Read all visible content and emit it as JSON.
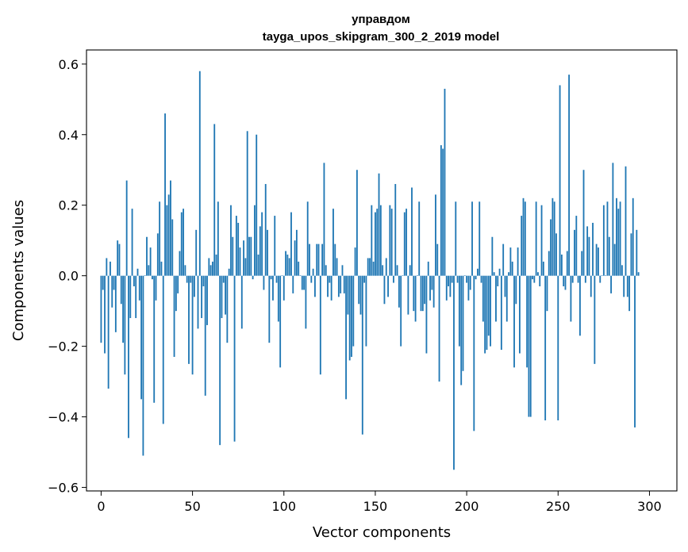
{
  "chart_data": {
    "type": "bar",
    "title": "управдом",
    "subtitle": "tayga_upos_skipgram_300_2_2019 model",
    "xlabel": "Vector components",
    "ylabel": "Components values",
    "xlim": [
      -8,
      315
    ],
    "ylim": [
      -0.61,
      0.64
    ],
    "xticks": [
      0,
      50,
      100,
      150,
      200,
      250,
      300
    ],
    "yticks": [
      -0.6,
      -0.4,
      -0.2,
      0.0,
      0.2,
      0.4,
      0.6
    ],
    "xtick_labels": [
      "0",
      "50",
      "100",
      "150",
      "200",
      "250",
      "300"
    ],
    "ytick_labels": [
      "−0.6",
      "−0.4",
      "−0.2",
      "0.0",
      "0.2",
      "0.4",
      "0.6"
    ],
    "grid": false,
    "bar_color": "#1f77b4",
    "values": [
      -0.19,
      -0.04,
      -0.22,
      0.05,
      -0.32,
      0.04,
      -0.09,
      -0.04,
      -0.16,
      0.1,
      0.09,
      -0.08,
      -0.19,
      -0.28,
      0.27,
      -0.46,
      -0.12,
      0.19,
      -0.03,
      -0.12,
      0.02,
      -0.07,
      -0.35,
      -0.51,
      0.0,
      0.11,
      0.03,
      0.08,
      -0.01,
      -0.36,
      -0.07,
      0.12,
      0.21,
      0.04,
      -0.42,
      0.46,
      0.2,
      0.23,
      0.27,
      0.16,
      -0.23,
      -0.1,
      -0.05,
      0.07,
      0.18,
      0.19,
      0.03,
      -0.02,
      -0.25,
      -0.02,
      -0.28,
      -0.06,
      0.13,
      -0.15,
      0.58,
      -0.12,
      -0.03,
      -0.34,
      -0.14,
      0.05,
      0.03,
      0.04,
      0.43,
      0.06,
      0.21,
      -0.48,
      -0.12,
      -0.02,
      -0.11,
      -0.19,
      0.02,
      0.2,
      0.11,
      -0.47,
      0.17,
      0.15,
      0.08,
      -0.15,
      0.1,
      0.05,
      0.41,
      0.11,
      0.11,
      -0.01,
      0.2,
      0.4,
      0.06,
      0.14,
      0.18,
      -0.04,
      0.26,
      0.13,
      -0.19,
      -0.01,
      -0.07,
      0.17,
      -0.02,
      -0.13,
      -0.26,
      0.0,
      -0.07,
      0.07,
      0.06,
      0.05,
      0.18,
      -0.05,
      0.1,
      0.13,
      0.04,
      0.0,
      -0.04,
      -0.04,
      -0.15,
      0.21,
      0.09,
      -0.02,
      0.02,
      -0.06,
      0.09,
      0.09,
      -0.28,
      0.09,
      0.32,
      0.03,
      -0.06,
      -0.02,
      -0.07,
      0.19,
      0.09,
      0.05,
      -0.06,
      -0.05,
      0.03,
      -0.05,
      -0.35,
      -0.11,
      -0.24,
      -0.23,
      -0.2,
      0.08,
      0.3,
      -0.08,
      -0.11,
      -0.45,
      -0.02,
      -0.2,
      0.05,
      0.05,
      0.2,
      0.04,
      0.18,
      0.19,
      0.29,
      0.2,
      0.03,
      -0.08,
      0.05,
      -0.06,
      0.2,
      0.19,
      -0.02,
      0.26,
      0.03,
      -0.09,
      -0.2,
      0.0,
      0.18,
      0.19,
      -0.11,
      0.03,
      0.25,
      -0.1,
      -0.13,
      0.0,
      0.21,
      -0.1,
      -0.1,
      -0.08,
      -0.22,
      0.04,
      -0.07,
      -0.04,
      -0.09,
      0.23,
      0.09,
      -0.3,
      0.37,
      0.36,
      0.53,
      -0.07,
      -0.03,
      -0.06,
      -0.02,
      -0.55,
      0.21,
      -0.02,
      -0.2,
      -0.31,
      -0.27,
      0.0,
      -0.02,
      -0.07,
      -0.04,
      0.21,
      -0.44,
      -0.01,
      0.02,
      0.21,
      -0.02,
      -0.13,
      -0.22,
      -0.21,
      -0.17,
      -0.2,
      0.11,
      0.01,
      -0.13,
      -0.03,
      0.02,
      -0.21,
      0.09,
      -0.06,
      -0.13,
      0.01,
      0.08,
      0.04,
      -0.26,
      -0.08,
      0.08,
      -0.22,
      0.17,
      0.22,
      0.21,
      -0.26,
      -0.4,
      -0.4,
      -0.01,
      -0.02,
      0.21,
      0.01,
      -0.03,
      0.2,
      0.04,
      -0.41,
      -0.1,
      0.07,
      0.16,
      0.22,
      0.21,
      0.12,
      -0.41,
      0.54,
      0.06,
      -0.03,
      -0.04,
      0.07,
      0.57,
      -0.13,
      -0.02,
      0.13,
      0.17,
      -0.02,
      -0.17,
      0.07,
      0.3,
      -0.02,
      0.14,
      0.11,
      -0.06,
      0.15,
      -0.25,
      0.09,
      0.08,
      -0.02,
      0.0,
      0.2,
      0.0,
      0.21,
      0.11,
      -0.05,
      0.32,
      0.09,
      0.22,
      0.19,
      0.21,
      0.03,
      -0.06,
      0.31,
      -0.06,
      -0.1,
      0.12,
      0.22,
      -0.43,
      0.13,
      0.01
    ]
  }
}
